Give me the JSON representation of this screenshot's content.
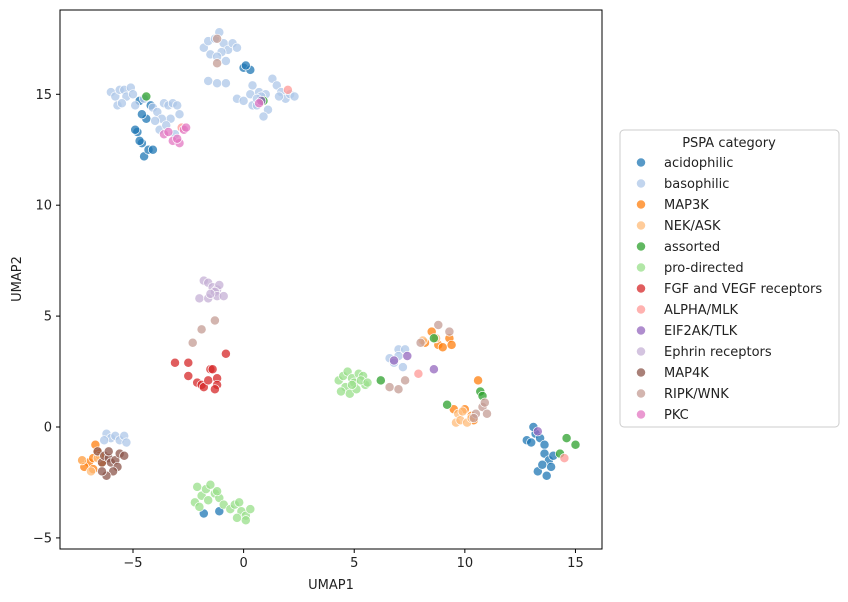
{
  "chart_data": {
    "type": "scatter",
    "xlabel": "UMAP1",
    "ylabel": "UMAP2",
    "xlim": [
      -8.3,
      16.2
    ],
    "ylim": [
      -5.5,
      18.8
    ],
    "xticks": [
      -5,
      0,
      5,
      10,
      15
    ],
    "yticks": [
      -5,
      0,
      5,
      10,
      15
    ],
    "xtick_labels": [
      "−5",
      "0",
      "5",
      "10",
      "15"
    ],
    "ytick_labels": [
      "−5",
      "0",
      "5",
      "10",
      "15"
    ],
    "grid": false,
    "legend": {
      "title": "PSPA category",
      "placement": "outside-right"
    },
    "series": [
      {
        "name": "acidophilic",
        "color": "#1f77b4",
        "points": [
          [
            -4.8,
            13.3
          ],
          [
            -4.6,
            12.8
          ],
          [
            -4.5,
            12.2
          ],
          [
            -4.3,
            12.5
          ],
          [
            -4.4,
            13.9
          ],
          [
            -4.2,
            14.5
          ],
          [
            -4.7,
            14.7
          ],
          [
            -4.9,
            13.4
          ],
          [
            -4.7,
            12.9
          ],
          [
            -4.1,
            12.5
          ],
          [
            -4.6,
            14.1
          ],
          [
            0.0,
            16.2
          ],
          [
            0.3,
            16.1
          ],
          [
            0.1,
            16.3
          ],
          [
            -1.1,
            -3.8
          ],
          [
            -1.8,
            -3.9
          ],
          [
            12.8,
            -0.6
          ],
          [
            13.0,
            -0.7
          ],
          [
            13.2,
            -0.3
          ],
          [
            13.4,
            -0.5
          ],
          [
            13.6,
            -0.8
          ],
          [
            13.1,
            0.0
          ],
          [
            13.6,
            -1.2
          ],
          [
            13.8,
            -1.5
          ],
          [
            13.3,
            -2.0
          ],
          [
            13.7,
            -2.2
          ],
          [
            13.5,
            -1.7
          ],
          [
            13.9,
            -1.8
          ],
          [
            14.0,
            -1.3
          ]
        ]
      },
      {
        "name": "basophilic",
        "color": "#aec7e8",
        "points": [
          [
            -6.0,
            15.1
          ],
          [
            -5.8,
            14.9
          ],
          [
            -5.6,
            15.2
          ],
          [
            -5.4,
            15.2
          ],
          [
            -5.3,
            14.9
          ],
          [
            -5.1,
            15.3
          ],
          [
            -5.0,
            15.0
          ],
          [
            -5.7,
            14.5
          ],
          [
            -5.5,
            14.6
          ],
          [
            -4.9,
            14.5
          ],
          [
            -4.5,
            14.8
          ],
          [
            -4.1,
            14.4
          ],
          [
            -3.9,
            14.2
          ],
          [
            -3.6,
            14.6
          ],
          [
            -3.4,
            14.5
          ],
          [
            -3.2,
            14.6
          ],
          [
            -3.0,
            14.5
          ],
          [
            -2.9,
            14.1
          ],
          [
            -3.3,
            13.9
          ],
          [
            -3.7,
            13.9
          ],
          [
            -4.0,
            13.8
          ],
          [
            -3.8,
            13.4
          ],
          [
            -3.5,
            13.6
          ],
          [
            -3.1,
            13.2
          ],
          [
            -1.8,
            17.1
          ],
          [
            -1.6,
            17.4
          ],
          [
            -1.3,
            17.5
          ],
          [
            -1.1,
            17.8
          ],
          [
            -0.9,
            17.3
          ],
          [
            -0.7,
            17.0
          ],
          [
            -1.0,
            16.9
          ],
          [
            -1.5,
            16.8
          ],
          [
            -0.5,
            17.3
          ],
          [
            -0.3,
            17.1
          ],
          [
            -1.2,
            16.7
          ],
          [
            -0.8,
            16.5
          ],
          [
            -1.6,
            15.6
          ],
          [
            -1.2,
            15.5
          ],
          [
            -0.8,
            15.5
          ],
          [
            -0.3,
            14.8
          ],
          [
            0.0,
            14.7
          ],
          [
            0.3,
            15.0
          ],
          [
            0.4,
            15.4
          ],
          [
            0.7,
            15.1
          ],
          [
            1.0,
            15.0
          ],
          [
            0.8,
            14.9
          ],
          [
            1.1,
            14.3
          ],
          [
            0.9,
            14.0
          ],
          [
            0.4,
            14.5
          ],
          [
            0.6,
            14.5
          ],
          [
            1.3,
            15.7
          ],
          [
            1.5,
            15.4
          ],
          [
            1.7,
            15.1
          ],
          [
            1.9,
            14.8
          ],
          [
            2.1,
            15.0
          ],
          [
            2.3,
            14.9
          ],
          [
            0.6,
            14.8
          ],
          [
            1.6,
            14.9
          ],
          [
            -6.2,
            -0.3
          ],
          [
            -6.0,
            -0.5
          ],
          [
            -5.8,
            -0.4
          ],
          [
            -5.6,
            -0.6
          ],
          [
            -5.4,
            -0.4
          ],
          [
            -5.3,
            -0.7
          ],
          [
            -6.3,
            -0.6
          ],
          [
            6.6,
            3.1
          ],
          [
            7.0,
            3.5
          ],
          [
            7.3,
            3.5
          ],
          [
            7.2,
            2.7
          ],
          [
            7.0,
            3.2
          ],
          [
            6.8,
            2.9
          ]
        ]
      },
      {
        "name": "MAP3K",
        "color": "#ff7f0e",
        "points": [
          [
            -7.3,
            -1.5
          ],
          [
            -7.0,
            -1.6
          ],
          [
            -6.8,
            -1.4
          ],
          [
            -6.6,
            -1.1
          ],
          [
            -6.7,
            -0.8
          ],
          [
            -7.2,
            -1.8
          ],
          [
            -6.4,
            -1.6
          ],
          [
            -6.8,
            -1.9
          ],
          [
            -6.5,
            -1.3
          ],
          [
            8.2,
            3.8
          ],
          [
            8.5,
            4.3
          ],
          [
            8.8,
            3.7
          ],
          [
            9.0,
            3.6
          ],
          [
            9.3,
            4.0
          ],
          [
            9.4,
            3.7
          ],
          [
            10.6,
            2.1
          ],
          [
            9.5,
            0.8
          ],
          [
            10.0,
            0.8
          ],
          [
            10.3,
            0.5
          ],
          [
            10.4,
            0.3
          ]
        ]
      },
      {
        "name": "NEK/ASK",
        "color": "#ffbb78",
        "points": [
          [
            -6.9,
            -2.0
          ],
          [
            -7.3,
            -1.5
          ],
          [
            -6.6,
            -1.4
          ],
          [
            8.1,
            3.9
          ],
          [
            8.7,
            4.0
          ],
          [
            9.7,
            0.6
          ],
          [
            9.6,
            0.2
          ],
          [
            9.8,
            0.3
          ],
          [
            10.1,
            0.2
          ],
          [
            10.3,
            0.4
          ],
          [
            9.9,
            0.7
          ]
        ]
      },
      {
        "name": "assorted",
        "color": "#2ca02c",
        "points": [
          [
            -4.4,
            14.9
          ],
          [
            0.9,
            14.7
          ],
          [
            6.2,
            2.1
          ],
          [
            8.6,
            4.0
          ],
          [
            9.2,
            1.0
          ],
          [
            10.7,
            1.6
          ],
          [
            10.8,
            1.4
          ],
          [
            14.3,
            -1.2
          ],
          [
            14.6,
            -0.5
          ],
          [
            15.0,
            -0.8
          ]
        ]
      },
      {
        "name": "pro-directed",
        "color": "#98df8a",
        "points": [
          [
            4.3,
            2.1
          ],
          [
            4.5,
            2.3
          ],
          [
            4.7,
            2.5
          ],
          [
            4.9,
            2.2
          ],
          [
            5.0,
            2.0
          ],
          [
            5.2,
            2.4
          ],
          [
            5.4,
            2.3
          ],
          [
            5.5,
            1.9
          ],
          [
            4.6,
            1.8
          ],
          [
            4.8,
            1.5
          ],
          [
            5.1,
            1.7
          ],
          [
            4.4,
            1.6
          ],
          [
            4.9,
            1.9
          ],
          [
            5.3,
            2.1
          ],
          [
            5.6,
            2.0
          ],
          [
            -2.1,
            -2.7
          ],
          [
            -1.9,
            -3.1
          ],
          [
            -1.7,
            -2.8
          ],
          [
            -1.5,
            -2.6
          ],
          [
            -1.3,
            -3.0
          ],
          [
            -1.1,
            -3.2
          ],
          [
            -0.9,
            -3.5
          ],
          [
            -2.2,
            -3.4
          ],
          [
            -2.0,
            -3.6
          ],
          [
            -1.6,
            -3.3
          ],
          [
            -0.6,
            -3.7
          ],
          [
            -0.4,
            -3.5
          ],
          [
            -0.2,
            -3.4
          ],
          [
            -0.1,
            -3.8
          ],
          [
            0.1,
            -4.0
          ],
          [
            0.3,
            -3.7
          ],
          [
            -0.3,
            -4.1
          ],
          [
            0.1,
            -4.2
          ],
          [
            -1.2,
            -2.9
          ]
        ]
      },
      {
        "name": "FGF and VEGF receptors",
        "color": "#d62728",
        "points": [
          [
            -3.1,
            2.9
          ],
          [
            -2.5,
            2.9
          ],
          [
            -2.5,
            2.3
          ],
          [
            -2.1,
            2.0
          ],
          [
            -1.9,
            1.9
          ],
          [
            -1.8,
            1.8
          ],
          [
            -1.6,
            2.1
          ],
          [
            -1.5,
            2.6
          ],
          [
            -1.4,
            2.6
          ],
          [
            -1.2,
            2.2
          ],
          [
            -1.2,
            1.9
          ],
          [
            -1.3,
            1.7
          ],
          [
            -0.8,
            3.3
          ]
        ]
      },
      {
        "name": "ALPHA/MLK",
        "color": "#ff9896",
        "points": [
          [
            -2.8,
            13.5
          ],
          [
            2.0,
            15.2
          ],
          [
            7.9,
            2.4
          ],
          [
            14.5,
            -1.4
          ]
        ]
      },
      {
        "name": "EIF2AK/TLK",
        "color": "#9467bd",
        "points": [
          [
            0.8,
            14.7
          ],
          [
            6.8,
            3.0
          ],
          [
            7.4,
            3.2
          ],
          [
            8.6,
            2.6
          ],
          [
            13.3,
            -0.2
          ]
        ]
      },
      {
        "name": "Ephrin receptors",
        "color": "#c5b0d5",
        "points": [
          [
            -1.8,
            6.6
          ],
          [
            -1.6,
            6.5
          ],
          [
            -1.4,
            6.3
          ],
          [
            -1.2,
            6.2
          ],
          [
            -1.1,
            6.4
          ],
          [
            -1.3,
            6.1
          ],
          [
            -2.0,
            5.8
          ],
          [
            -1.6,
            5.8
          ],
          [
            -1.2,
            5.9
          ],
          [
            -0.9,
            5.9
          ],
          [
            -1.5,
            6.0
          ]
        ]
      },
      {
        "name": "MAP4K",
        "color": "#8c564b",
        "points": [
          [
            -6.6,
            -1.1
          ],
          [
            -6.4,
            -1.6
          ],
          [
            -6.3,
            -1.3
          ],
          [
            -6.1,
            -1.4
          ],
          [
            -6.0,
            -1.6
          ],
          [
            -5.8,
            -1.5
          ],
          [
            -5.6,
            -1.2
          ],
          [
            -5.4,
            -1.3
          ],
          [
            -5.7,
            -1.8
          ],
          [
            -5.9,
            -2.0
          ],
          [
            -6.2,
            -2.2
          ],
          [
            -6.4,
            -2.0
          ],
          [
            -6.1,
            -1.1
          ]
        ]
      },
      {
        "name": "RIPK/WNK",
        "color": "#c49c94",
        "points": [
          [
            -1.2,
            17.5
          ],
          [
            -1.2,
            16.4
          ],
          [
            -2.3,
            3.8
          ],
          [
            -1.9,
            4.4
          ],
          [
            -1.3,
            4.8
          ],
          [
            6.6,
            1.8
          ],
          [
            7.0,
            1.7
          ],
          [
            7.3,
            2.1
          ],
          [
            8.0,
            3.8
          ],
          [
            8.8,
            4.6
          ],
          [
            9.3,
            4.3
          ],
          [
            10.5,
            0.6
          ],
          [
            10.8,
            0.9
          ],
          [
            10.9,
            1.1
          ],
          [
            11.0,
            0.6
          ],
          [
            10.4,
            0.4
          ]
        ]
      },
      {
        "name": "PKC",
        "color": "#e377c2",
        "points": [
          [
            -3.6,
            13.2
          ],
          [
            -3.4,
            13.3
          ],
          [
            -3.2,
            12.9
          ],
          [
            -2.9,
            12.8
          ],
          [
            -2.7,
            13.4
          ],
          [
            -2.6,
            13.5
          ],
          [
            -3.0,
            13.0
          ],
          [
            0.7,
            14.6
          ]
        ]
      }
    ]
  }
}
